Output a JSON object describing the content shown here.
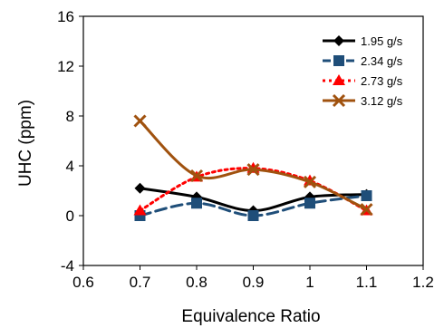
{
  "chart_data": {
    "type": "line",
    "xlabel": "Equivalence Ratio",
    "ylabel": "UHC (ppm)",
    "xlim": [
      0.6,
      1.2
    ],
    "ylim": [
      -4,
      16
    ],
    "xticks": [
      "0.6",
      "0.7",
      "0.8",
      "0.9",
      "1",
      "1.1",
      "1.2"
    ],
    "yticks": [
      "-4",
      "0",
      "4",
      "8",
      "12",
      "16"
    ],
    "grid": false,
    "legend_position": "top-right",
    "series": [
      {
        "name": "1.95 g/s",
        "color": "#000000",
        "marker": "diamond",
        "line": "solid",
        "x": [
          0.7,
          0.8,
          0.9,
          1.0,
          1.1
        ],
        "y": [
          2.2,
          1.5,
          0.4,
          1.5,
          1.7
        ]
      },
      {
        "name": "2.34 g/s",
        "color": "#1f4e79",
        "marker": "square",
        "line": "dashed",
        "x": [
          0.7,
          0.8,
          0.9,
          1.0,
          1.1
        ],
        "y": [
          0.0,
          1.0,
          0.0,
          1.0,
          1.6
        ]
      },
      {
        "name": "2.73 g/s",
        "color": "#ff0000",
        "marker": "triangle",
        "line": "dotted",
        "x": [
          0.7,
          0.8,
          0.9,
          1.0,
          1.1
        ],
        "y": [
          0.4,
          3.1,
          3.8,
          2.8,
          0.4
        ]
      },
      {
        "name": "3.12 g/s",
        "color": "#a0520f",
        "marker": "x",
        "line": "solid",
        "x": [
          0.7,
          0.8,
          0.9,
          1.0,
          1.1
        ],
        "y": [
          7.6,
          3.2,
          3.7,
          2.7,
          0.5
        ]
      }
    ]
  }
}
